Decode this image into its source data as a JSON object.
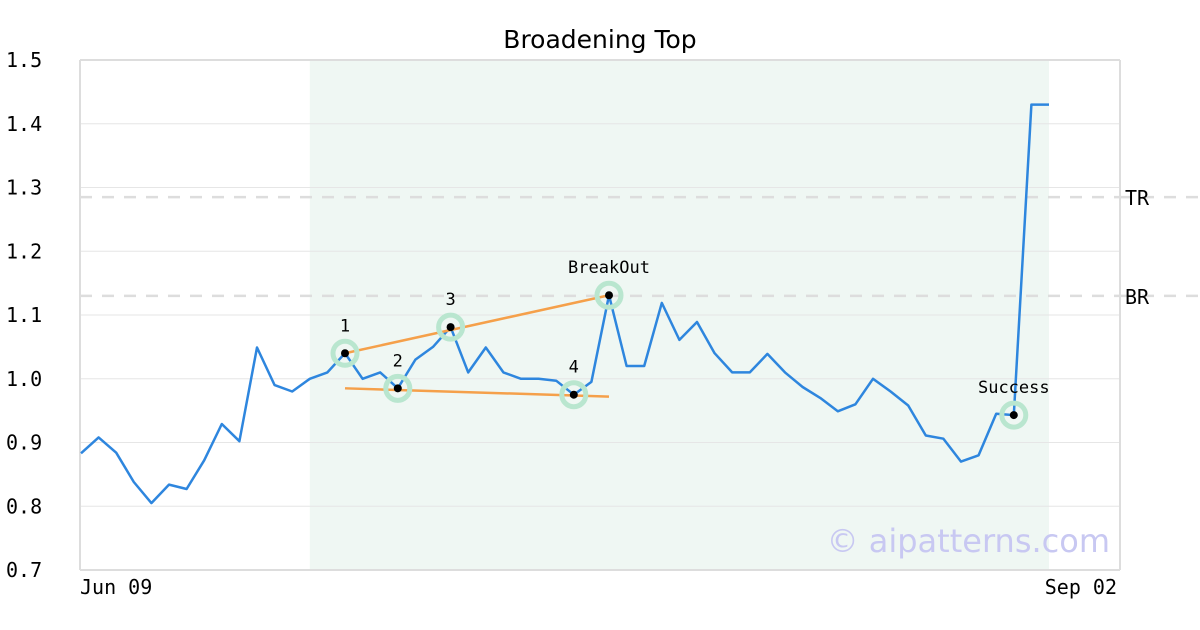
{
  "chart_data": {
    "type": "line",
    "title": "Broadening Top",
    "ylim": [
      0.7,
      1.5
    ],
    "y_ticks": [
      "0.7",
      "0.8",
      "0.9",
      "1.0",
      "1.1",
      "1.2",
      "1.3",
      "1.4",
      "1.5"
    ],
    "x_tick_labels": [
      "Jun 09",
      "Sep 02"
    ],
    "grid": true,
    "colors": {
      "line": "#2e86de",
      "trend": "#f5a04a",
      "highlight_band": "#eff7f3",
      "marker_halo": "#b9e6cf",
      "ref_line": "#dddddd",
      "frame": "#dddddd"
    },
    "series": [
      {
        "values": [
          0.883,
          0.908,
          0.884,
          0.838,
          0.805,
          0.834,
          0.827,
          0.872,
          0.929,
          0.902,
          1.049,
          0.99,
          0.98,
          1.0,
          1.01,
          1.04,
          1.0,
          1.01,
          0.985,
          1.03,
          1.05,
          1.081,
          1.01,
          1.049,
          1.01,
          1.0,
          1.0,
          0.997,
          0.975,
          0.995,
          1.131,
          1.02,
          1.02,
          1.119,
          1.061,
          1.089,
          1.04,
          1.01,
          1.01,
          1.039,
          1.01,
          0.987,
          0.97,
          0.949,
          0.96,
          1.0,
          0.98,
          0.958,
          0.911,
          0.906,
          0.87,
          0.88,
          0.945,
          0.943,
          1.43,
          1.43
        ]
      }
    ],
    "highlight_range": [
      13,
      55
    ],
    "reference_lines": [
      {
        "label": "TR",
        "value": 1.285
      },
      {
        "label": "BR",
        "value": 1.13
      }
    ],
    "trend_lines": [
      {
        "from": [
          15,
          1.04
        ],
        "to": [
          30,
          1.131
        ]
      },
      {
        "from": [
          15,
          0.985
        ],
        "to": [
          30,
          0.972
        ]
      }
    ],
    "annotations": [
      {
        "label": "1",
        "index": 15,
        "value": 1.04
      },
      {
        "label": "2",
        "index": 18,
        "value": 0.985
      },
      {
        "label": "3",
        "index": 21,
        "value": 1.081
      },
      {
        "label": "4",
        "index": 28,
        "value": 0.975
      },
      {
        "label": "BreakOut",
        "index": 30,
        "value": 1.131
      },
      {
        "label": "Success",
        "index": 53,
        "value": 0.943
      }
    ],
    "watermark": "© aipatterns.com"
  }
}
